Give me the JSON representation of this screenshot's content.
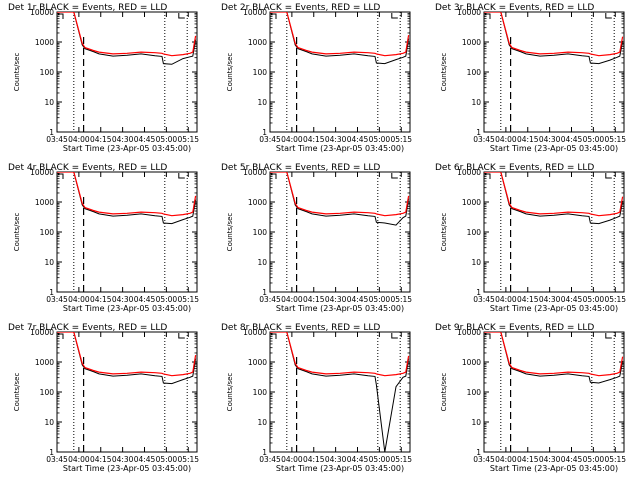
{
  "chart_data": [
    {
      "type": "line",
      "title": "Det 1r BLACK = Events, RED = LLD",
      "xlabel": "Start Time (23-Apr-05 03:45:00)",
      "ylabel": "Counts/sec",
      "yscale": "log",
      "xticks": [
        "03:45",
        "04:00",
        "04:15",
        "04:30",
        "04:45",
        "05:00",
        "05:15"
      ],
      "yticks": [
        "1",
        "10",
        "100",
        "1000",
        "10000"
      ],
      "ylim": [
        1,
        10000
      ],
      "x": [
        0,
        8,
        12,
        18,
        20,
        26,
        30,
        40,
        50,
        60,
        70,
        75,
        76,
        82,
        90,
        95,
        97,
        99
      ],
      "series": [
        {
          "name": "Events",
          "color": "#000000",
          "values": [
            10000,
            10000,
            10000,
            800,
            600,
            480,
            400,
            340,
            360,
            400,
            350,
            330,
            190,
            180,
            280,
            320,
            340,
            1200
          ]
        },
        {
          "name": "LLD",
          "color": "#ff0000",
          "values": [
            10000,
            10000,
            10000,
            900,
            650,
            520,
            460,
            400,
            420,
            460,
            440,
            420,
            400,
            350,
            380,
            420,
            460,
            1600
          ]
        }
      ],
      "dotted_x": [
        12,
        77,
        93
      ],
      "dashed_x": [
        19
      ],
      "lld_lower_mark_x": [
        12
      ]
    },
    {
      "type": "line",
      "title": "Det 2r BLACK = Events, RED = LLD",
      "xlabel": "Start Time (23-Apr-05 03:45:00)",
      "ylabel": "Counts/sec",
      "yscale": "log",
      "xticks": [
        "03:45",
        "04:00",
        "04:15",
        "04:30",
        "04:45",
        "05:00",
        "05:15"
      ],
      "yticks": [
        "1",
        "10",
        "100",
        "1000",
        "10000"
      ],
      "ylim": [
        1,
        10000
      ],
      "x": [
        0,
        8,
        12,
        18,
        20,
        26,
        30,
        40,
        50,
        60,
        70,
        75,
        76,
        82,
        90,
        95,
        97,
        99
      ],
      "series": [
        {
          "name": "Events",
          "color": "#000000",
          "values": [
            10000,
            10000,
            10000,
            800,
            600,
            480,
            400,
            340,
            360,
            400,
            350,
            330,
            200,
            190,
            260,
            310,
            340,
            1300
          ]
        },
        {
          "name": "LLD",
          "color": "#ff0000",
          "values": [
            10000,
            10000,
            10000,
            900,
            650,
            520,
            460,
            400,
            420,
            460,
            440,
            420,
            400,
            350,
            380,
            420,
            460,
            1700
          ]
        }
      ],
      "dotted_x": [
        12,
        77,
        93
      ],
      "dashed_x": [
        19
      ],
      "lld_lower_mark_x": [
        12
      ]
    },
    {
      "type": "line",
      "title": "Det 3r BLACK = Events, RED = LLD",
      "xlabel": "Start Time (23-Apr-05 03:45:00)",
      "ylabel": "Counts/sec",
      "yscale": "log",
      "xticks": [
        "03:45",
        "04:00",
        "04:15",
        "04:30",
        "04:45",
        "05:00",
        "05:15"
      ],
      "yticks": [
        "1",
        "10",
        "100",
        "1000",
        "10000"
      ],
      "ylim": [
        1,
        10000
      ],
      "x": [
        0,
        8,
        12,
        18,
        20,
        26,
        30,
        40,
        50,
        60,
        70,
        75,
        76,
        82,
        90,
        95,
        97,
        99
      ],
      "series": [
        {
          "name": "Events",
          "color": "#000000",
          "values": [
            10000,
            10000,
            10000,
            800,
            600,
            480,
            400,
            340,
            360,
            400,
            350,
            330,
            200,
            190,
            250,
            310,
            340,
            1100
          ]
        },
        {
          "name": "LLD",
          "color": "#ff0000",
          "values": [
            10000,
            10000,
            10000,
            900,
            650,
            520,
            460,
            400,
            420,
            460,
            440,
            420,
            400,
            350,
            380,
            420,
            460,
            1500
          ]
        }
      ],
      "dotted_x": [
        12,
        77,
        93
      ],
      "dashed_x": [
        19
      ],
      "lld_lower_mark_x": [
        12
      ]
    },
    {
      "type": "line",
      "title": "Det 4r BLACK = Events, RED = LLD",
      "xlabel": "Start Time (23-Apr-05 03:45:00)",
      "ylabel": "Counts/sec",
      "yscale": "log",
      "xticks": [
        "03:45",
        "04:00",
        "04:15",
        "04:30",
        "04:45",
        "05:00",
        "05:15"
      ],
      "yticks": [
        "1",
        "10",
        "100",
        "1000",
        "10000"
      ],
      "ylim": [
        1,
        10000
      ],
      "x": [
        0,
        8,
        12,
        18,
        20,
        26,
        30,
        40,
        50,
        60,
        70,
        75,
        76,
        82,
        90,
        95,
        97,
        99
      ],
      "series": [
        {
          "name": "Events",
          "color": "#000000",
          "values": [
            10000,
            10000,
            10000,
            800,
            600,
            480,
            400,
            340,
            360,
            400,
            350,
            330,
            200,
            190,
            260,
            310,
            340,
            1200
          ]
        },
        {
          "name": "LLD",
          "color": "#ff0000",
          "values": [
            10000,
            10000,
            10000,
            900,
            650,
            520,
            460,
            400,
            420,
            460,
            440,
            420,
            400,
            350,
            380,
            420,
            460,
            1600
          ]
        }
      ],
      "dotted_x": [
        12,
        77,
        93
      ],
      "dashed_x": [
        19
      ],
      "lld_lower_mark_x": [
        12
      ]
    },
    {
      "type": "line",
      "title": "Det 5r BLACK = Events, RED = LLD",
      "xlabel": "Start Time (23-Apr-05 03:45:00)",
      "ylabel": "Counts/sec",
      "yscale": "log",
      "xticks": [
        "03:45",
        "04:00",
        "04:15",
        "04:30",
        "04:45",
        "05:00",
        "05:15"
      ],
      "yticks": [
        "1",
        "10",
        "100",
        "1000",
        "10000"
      ],
      "ylim": [
        1,
        10000
      ],
      "x": [
        0,
        8,
        12,
        18,
        20,
        26,
        30,
        40,
        50,
        60,
        70,
        75,
        76,
        82,
        90,
        95,
        97,
        99
      ],
      "series": [
        {
          "name": "Events",
          "color": "#000000",
          "values": [
            10000,
            10000,
            10000,
            800,
            600,
            480,
            400,
            340,
            360,
            400,
            350,
            330,
            210,
            200,
            170,
            300,
            340,
            1300
          ]
        },
        {
          "name": "LLD",
          "color": "#ff0000",
          "values": [
            10000,
            10000,
            10000,
            900,
            650,
            520,
            460,
            400,
            420,
            460,
            440,
            420,
            400,
            350,
            380,
            420,
            460,
            1600
          ]
        }
      ],
      "dotted_x": [
        12,
        77,
        93
      ],
      "dashed_x": [
        19
      ],
      "lld_lower_mark_x": [
        12
      ]
    },
    {
      "type": "line",
      "title": "Det 6r BLACK = Events, RED = LLD",
      "xlabel": "Start Time (23-Apr-05 03:45:00)",
      "ylabel": "Counts/sec",
      "yscale": "log",
      "xticks": [
        "03:45",
        "04:00",
        "04:15",
        "04:30",
        "04:45",
        "05:00",
        "05:15"
      ],
      "yticks": [
        "1",
        "10",
        "100",
        "1000",
        "10000"
      ],
      "ylim": [
        1,
        10000
      ],
      "x": [
        0,
        8,
        12,
        18,
        20,
        26,
        30,
        40,
        50,
        60,
        70,
        75,
        76,
        82,
        90,
        95,
        97,
        99
      ],
      "series": [
        {
          "name": "Events",
          "color": "#000000",
          "values": [
            10000,
            10000,
            10000,
            800,
            600,
            480,
            400,
            340,
            360,
            400,
            350,
            330,
            200,
            190,
            250,
            310,
            340,
            1100
          ]
        },
        {
          "name": "LLD",
          "color": "#ff0000",
          "values": [
            10000,
            10000,
            10000,
            900,
            650,
            520,
            460,
            400,
            420,
            460,
            440,
            420,
            400,
            350,
            380,
            420,
            460,
            1500
          ]
        }
      ],
      "dotted_x": [
        12,
        77,
        93
      ],
      "dashed_x": [
        19
      ],
      "lld_lower_mark_x": [
        12
      ]
    },
    {
      "type": "line",
      "title": "Det 7r BLACK = Events, RED = LLD",
      "xlabel": "Start Time (23-Apr-05 03:45:00)",
      "ylabel": "Counts/sec",
      "yscale": "log",
      "xticks": [
        "03:45",
        "04:00",
        "04:15",
        "04:30",
        "04:45",
        "05:00",
        "05:15"
      ],
      "yticks": [
        "1",
        "10",
        "100",
        "1000",
        "10000"
      ],
      "ylim": [
        1,
        10000
      ],
      "x": [
        0,
        8,
        12,
        18,
        20,
        26,
        30,
        40,
        50,
        60,
        70,
        75,
        76,
        82,
        90,
        95,
        97,
        99
      ],
      "series": [
        {
          "name": "Events",
          "color": "#000000",
          "values": [
            10000,
            10000,
            10000,
            800,
            600,
            480,
            400,
            340,
            360,
            400,
            350,
            330,
            200,
            190,
            260,
            310,
            340,
            1300
          ]
        },
        {
          "name": "LLD",
          "color": "#ff0000",
          "values": [
            10000,
            10000,
            10000,
            900,
            650,
            520,
            460,
            400,
            420,
            460,
            440,
            420,
            400,
            350,
            380,
            420,
            460,
            1700
          ]
        }
      ],
      "dotted_x": [
        12,
        77,
        93
      ],
      "dashed_x": [
        19
      ],
      "lld_lower_mark_x": [
        12
      ]
    },
    {
      "type": "line",
      "title": "Det 8r BLACK = Events, RED = LLD",
      "xlabel": "Start Time (23-Apr-05 03:45:00)",
      "ylabel": "Counts/sec",
      "yscale": "log",
      "xticks": [
        "03:45",
        "04:00",
        "04:15",
        "04:30",
        "04:45",
        "05:00",
        "05:15"
      ],
      "yticks": [
        "1",
        "10",
        "100",
        "1000",
        "10000"
      ],
      "ylim": [
        1,
        10000
      ],
      "x": [
        0,
        8,
        12,
        18,
        20,
        26,
        30,
        40,
        50,
        60,
        70,
        75,
        76,
        82,
        90,
        95,
        97,
        99
      ],
      "series": [
        {
          "name": "Events",
          "color": "#000000",
          "values": [
            10000,
            10000,
            10000,
            800,
            600,
            480,
            400,
            340,
            360,
            400,
            350,
            330,
            170,
            1,
            150,
            310,
            340,
            1300
          ]
        },
        {
          "name": "LLD",
          "color": "#ff0000",
          "values": [
            10000,
            10000,
            10000,
            900,
            650,
            520,
            460,
            400,
            420,
            460,
            440,
            420,
            400,
            350,
            380,
            420,
            460,
            1600
          ]
        }
      ],
      "dotted_x": [
        12,
        77,
        93
      ],
      "dashed_x": [
        19
      ],
      "lld_lower_mark_x": [
        12
      ]
    },
    {
      "type": "line",
      "title": "Det 9r BLACK = Events, RED = LLD",
      "xlabel": "Start Time (23-Apr-05 03:45:00)",
      "ylabel": "Counts/sec",
      "yscale": "log",
      "xticks": [
        "03:45",
        "04:00",
        "04:15",
        "04:30",
        "04:45",
        "05:00",
        "05:15"
      ],
      "yticks": [
        "1",
        "10",
        "100",
        "1000",
        "10000"
      ],
      "ylim": [
        1,
        10000
      ],
      "x": [
        0,
        8,
        12,
        18,
        20,
        26,
        30,
        40,
        50,
        60,
        70,
        75,
        76,
        82,
        90,
        95,
        97,
        99
      ],
      "series": [
        {
          "name": "Events",
          "color": "#000000",
          "values": [
            10000,
            10000,
            10000,
            800,
            600,
            480,
            400,
            340,
            360,
            400,
            350,
            330,
            210,
            200,
            260,
            310,
            340,
            1100
          ]
        },
        {
          "name": "LLD",
          "color": "#ff0000",
          "values": [
            10000,
            10000,
            10000,
            900,
            650,
            520,
            460,
            400,
            420,
            460,
            440,
            420,
            400,
            350,
            380,
            420,
            460,
            1500
          ]
        }
      ],
      "dotted_x": [
        12,
        77,
        93
      ],
      "dashed_x": [
        19
      ],
      "lld_lower_mark_x": [
        12
      ]
    }
  ]
}
